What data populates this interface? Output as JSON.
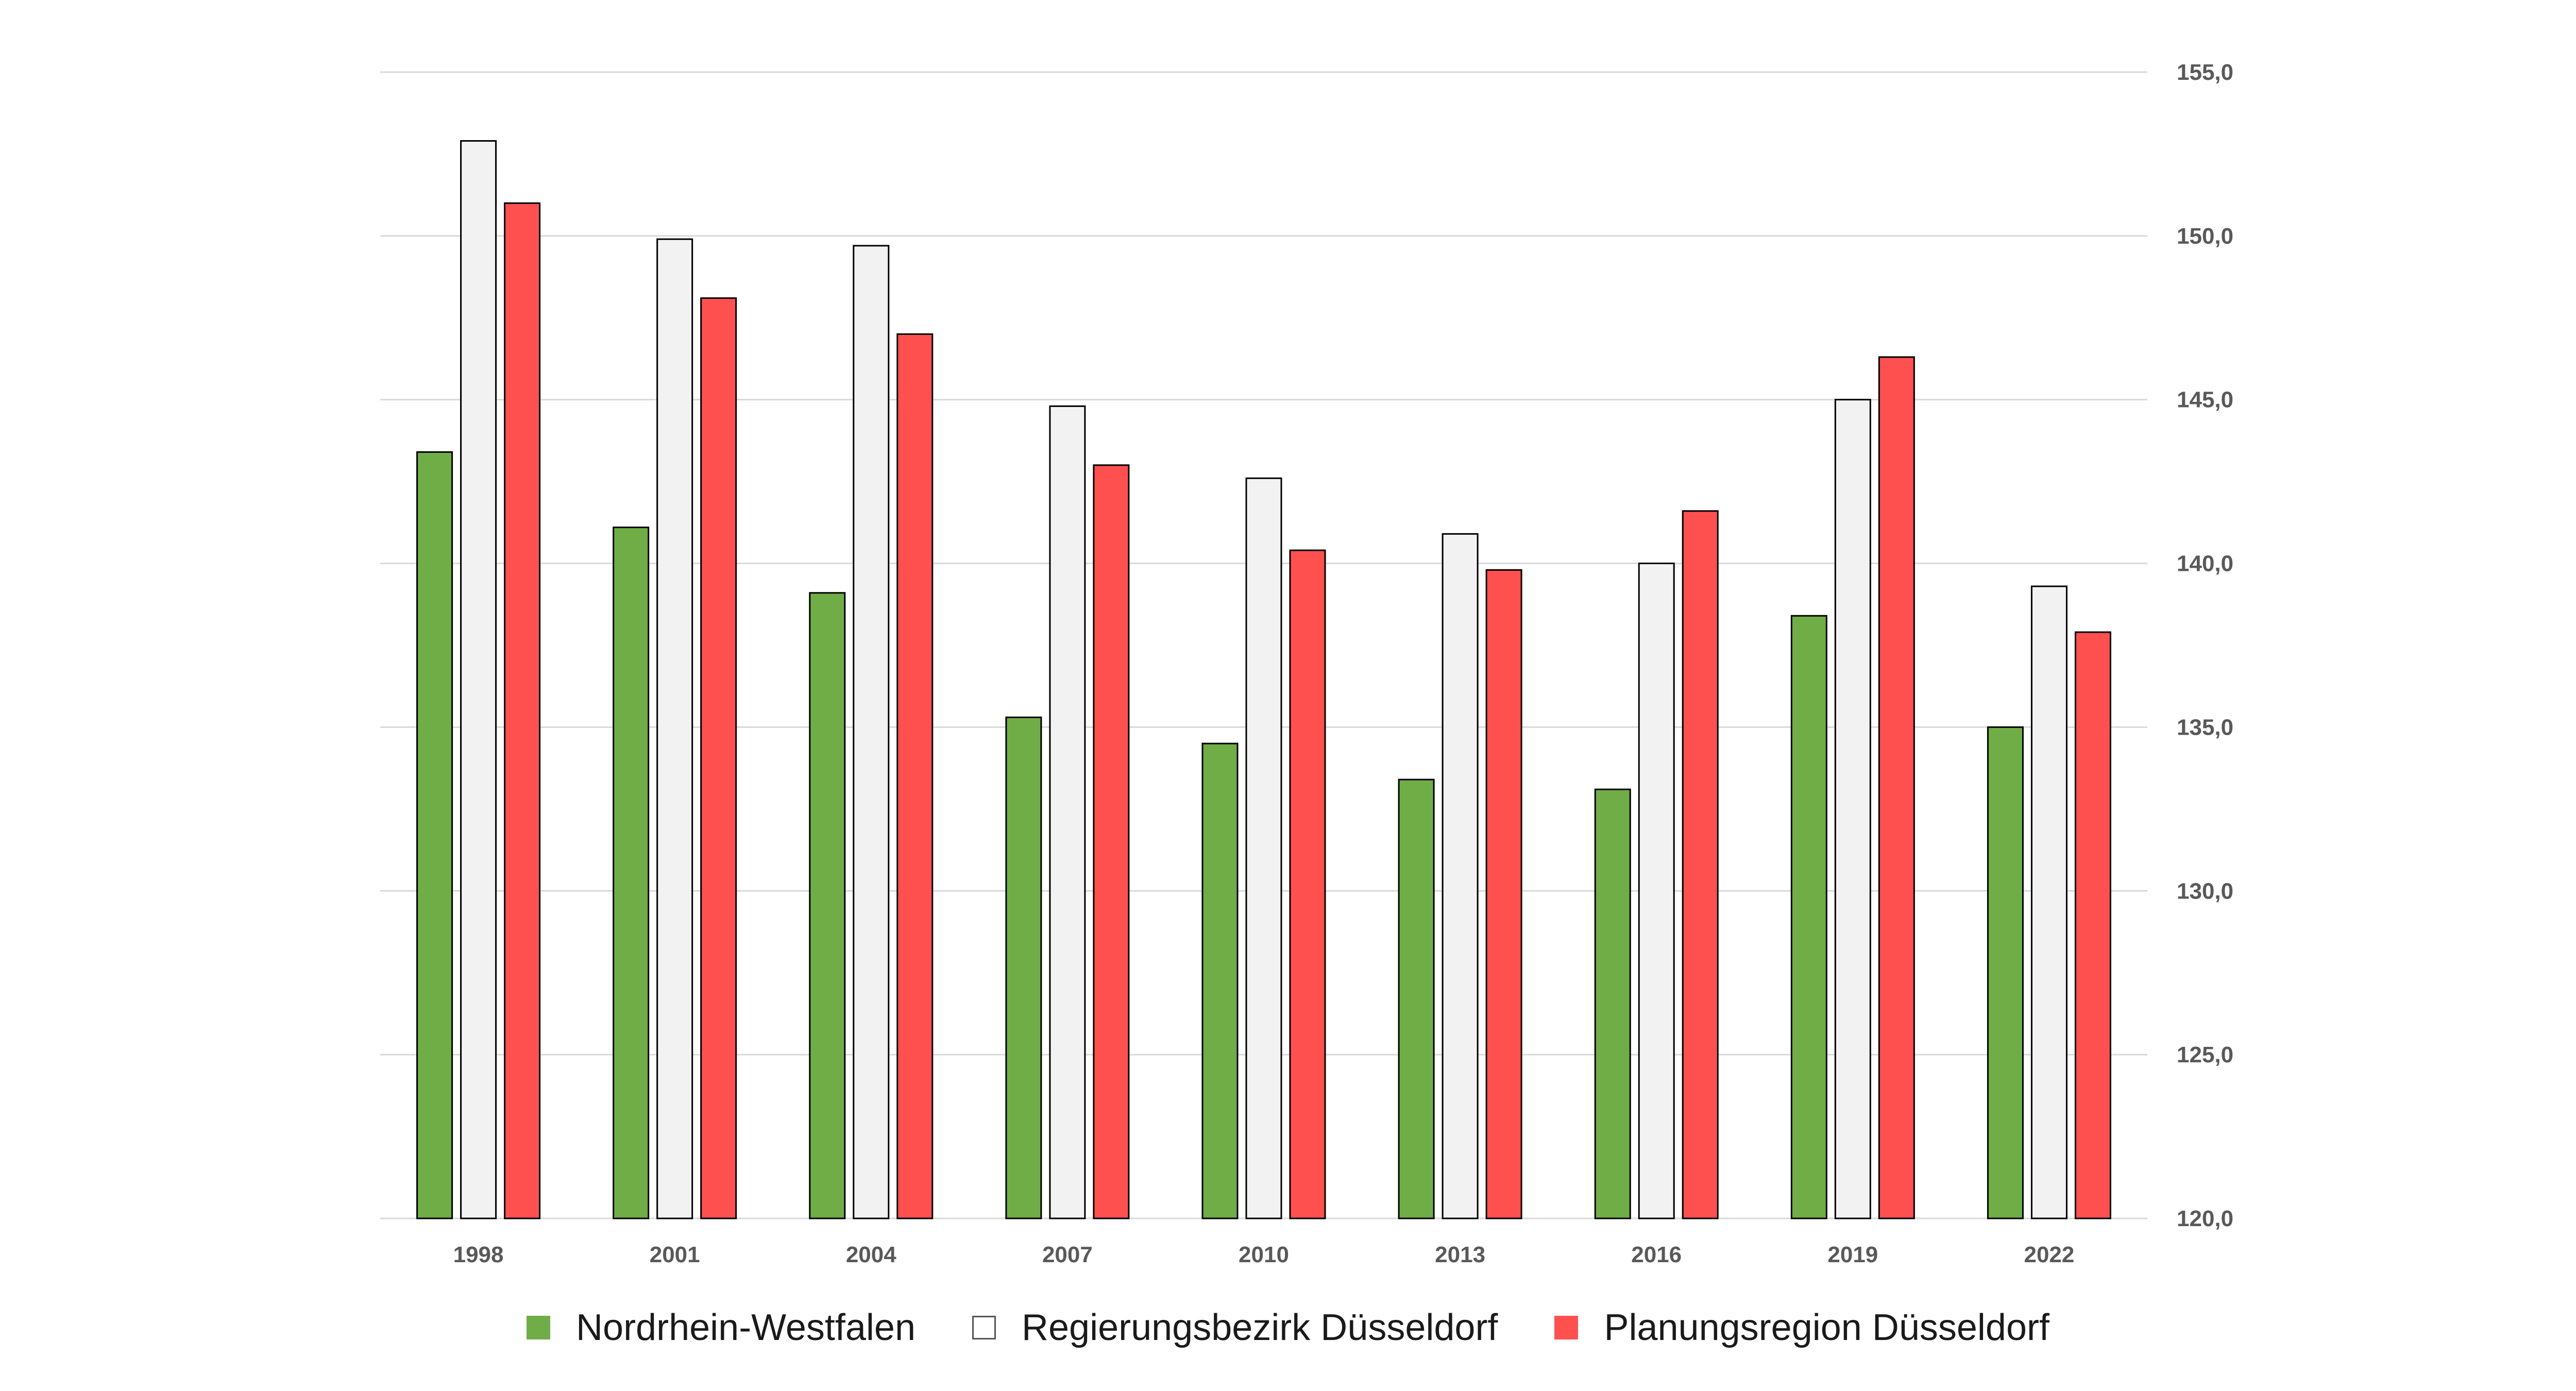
{
  "chart_data": {
    "type": "bar",
    "title": "",
    "xlabel": "",
    "ylabel": "",
    "y_axis_position": "right",
    "ylim": [
      120,
      155
    ],
    "yticks": [
      120,
      125,
      130,
      135,
      140,
      145,
      150,
      155
    ],
    "ytick_labels": [
      "120,0",
      "125,0",
      "130,0",
      "135,0",
      "140,0",
      "145,0",
      "150,0",
      "155,0"
    ],
    "grid": true,
    "legend_position": "bottom",
    "categories": [
      "1998",
      "2001",
      "2004",
      "2007",
      "2010",
      "2013",
      "2016",
      "2019",
      "2022"
    ],
    "series": [
      {
        "name": "Nordrhein-Westfalen",
        "color": "#70ad47",
        "values": [
          143.4,
          141.1,
          139.1,
          135.3,
          134.5,
          133.4,
          133.1,
          138.4,
          135.0
        ]
      },
      {
        "name": "Regierungsbezirk Düsseldorf",
        "color": "#f2f2f2",
        "values": [
          152.9,
          149.9,
          149.7,
          144.8,
          142.6,
          140.9,
          140.0,
          145.0,
          139.3
        ]
      },
      {
        "name": "Planungsregion Düsseldorf",
        "color": "#ff5050",
        "values": [
          151.0,
          148.1,
          147.0,
          143.0,
          140.4,
          139.8,
          141.6,
          146.3,
          137.9
        ]
      }
    ]
  }
}
